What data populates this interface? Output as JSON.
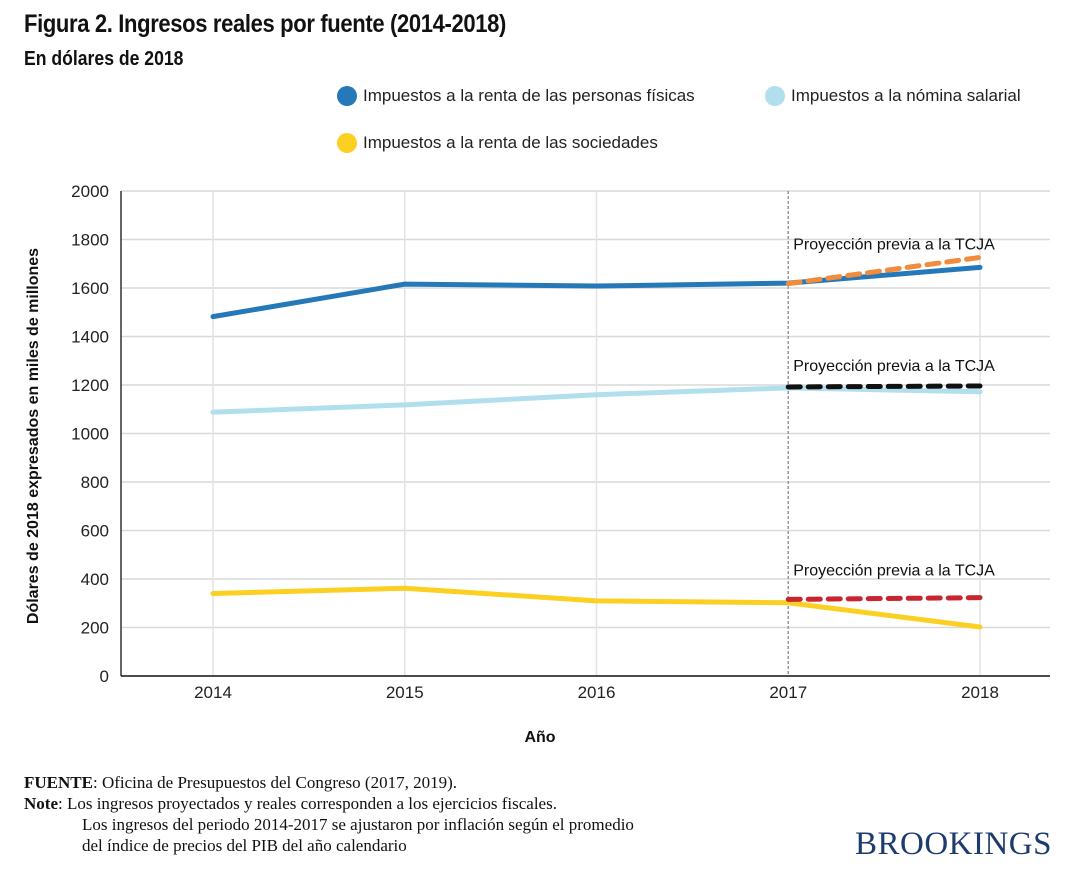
{
  "header": {
    "title": "Figura 2. Ingresos reales por fuente (2014-2018)",
    "subtitle": "En dólares de 2018"
  },
  "legend": [
    {
      "label": "Impuestos a la renta de las personas físicas",
      "color": "#2679b8"
    },
    {
      "label": "Impuestos a la nómina salarial",
      "color": "#b1dfee"
    },
    {
      "label": "Impuestos a la renta de las sociedades",
      "color": "#fcd022"
    }
  ],
  "chart_data": {
    "type": "line",
    "title": "Figura 2. Ingresos reales por fuente (2014-2018)",
    "subtitle": "En dólares de 2018",
    "xlabel": "Año",
    "ylabel": "Dólares de 2018 expresados en miles de millones",
    "x": [
      2014,
      2015,
      2016,
      2017,
      2018
    ],
    "x_tick_labels": [
      "2014",
      "2015",
      "2016",
      "2017",
      "2018"
    ],
    "ylim": [
      0,
      2000
    ],
    "y_ticks": [
      0,
      200,
      400,
      600,
      800,
      1000,
      1200,
      1400,
      1600,
      1800,
      2000
    ],
    "grid": true,
    "legend_position": "top-right",
    "reference_line": {
      "x": 2017,
      "style": "dotted",
      "color": "#999999"
    },
    "series": [
      {
        "name": "Impuestos a la renta de las personas físicas",
        "color": "#2679b8",
        "style": "solid",
        "x": [
          2014,
          2015,
          2016,
          2017,
          2018
        ],
        "values": [
          1482,
          1616,
          1608,
          1620,
          1685
        ]
      },
      {
        "name": "Impuestos a la nómina salarial",
        "color": "#b1dfee",
        "style": "solid",
        "x": [
          2014,
          2015,
          2016,
          2017,
          2018
        ],
        "values": [
          1088,
          1118,
          1160,
          1188,
          1172
        ]
      },
      {
        "name": "Impuestos a la renta de las sociedades",
        "color": "#fcd022",
        "style": "solid",
        "x": [
          2014,
          2015,
          2016,
          2017,
          2018
        ],
        "values": [
          340,
          362,
          310,
          302,
          202
        ]
      },
      {
        "name": "Proyección previa a la TCJA (personas físicas)",
        "color": "#f28b3c",
        "style": "dashed",
        "x": [
          2017,
          2018
        ],
        "values": [
          1618,
          1726
        ]
      },
      {
        "name": "Proyección previa a la TCJA (nómina salarial)",
        "color": "#111111",
        "style": "dashed",
        "x": [
          2017,
          2018
        ],
        "values": [
          1192,
          1196
        ]
      },
      {
        "name": "Proyección previa a la TCJA (sociedades)",
        "color": "#c9252f",
        "style": "dashed",
        "x": [
          2017,
          2018
        ],
        "values": [
          316,
          323
        ]
      }
    ],
    "annotations": [
      {
        "text": "Proyección previa a la TCJA",
        "x": 2017,
        "y": 1775
      },
      {
        "text": "Proyección previa a la TCJA",
        "x": 2017,
        "y": 1275
      },
      {
        "text": "Proyección previa a la TCJA",
        "x": 2017,
        "y": 430
      }
    ]
  },
  "footer": {
    "source_label": "FUENTE",
    "source_text": ": Oficina de Presupuestos del Congreso (2017, 2019).",
    "note_label": "Note",
    "note_lines": [
      ": Los ingresos proyectados y reales corresponden a los ejercicios fiscales.",
      "Los ingresos del periodo 2014-2017 se ajustaron por inflación según el promedio",
      "del índice de precios del PIB del año calendario"
    ]
  },
  "brand": "BROOKINGS"
}
